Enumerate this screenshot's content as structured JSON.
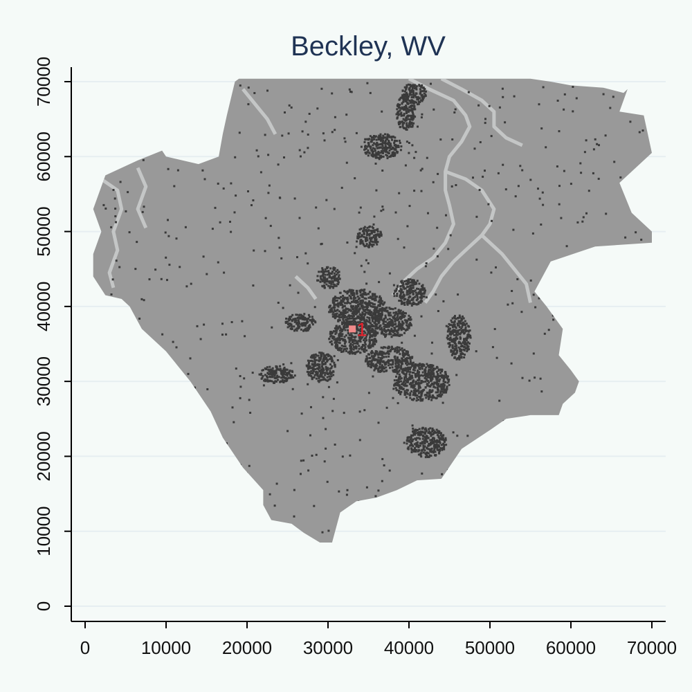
{
  "title": "Beckley, WV",
  "chart_data": {
    "type": "map",
    "title": "Beckley, WV",
    "xlabel": "",
    "ylabel": "",
    "xlim": [
      0,
      70000
    ],
    "ylim": [
      0,
      70000
    ],
    "x_ticks": [
      "0",
      "10000",
      "20000",
      "30000",
      "40000",
      "50000",
      "60000",
      "70000"
    ],
    "y_ticks": [
      "0",
      "10000",
      "20000",
      "30000",
      "40000",
      "50000",
      "60000",
      "70000"
    ],
    "grid": true,
    "colors": {
      "background": "#f5faf8",
      "region_fill": "#999999",
      "streams": "#c4c6c6",
      "developed": "#3a3a3a",
      "marker": "#f08a8a",
      "marker_label": "#e8202a",
      "title": "#1f3354"
    },
    "region_outline": [
      [
        2000,
        50000
      ],
      [
        1000,
        53000
      ],
      [
        2500,
        57500
      ],
      [
        6500,
        59500
      ],
      [
        9500,
        60800
      ],
      [
        10000,
        60000
      ],
      [
        14000,
        59000
      ],
      [
        16500,
        60000
      ],
      [
        17000,
        63000
      ],
      [
        17500,
        65500
      ],
      [
        18500,
        70000
      ],
      [
        19000,
        70400
      ],
      [
        44000,
        70400
      ],
      [
        55000,
        70400
      ],
      [
        57500,
        70000
      ],
      [
        60000,
        69500
      ],
      [
        64000,
        69200
      ],
      [
        66500,
        68500
      ],
      [
        67000,
        69000
      ],
      [
        66000,
        66000
      ],
      [
        69000,
        65500
      ],
      [
        70000,
        60500
      ],
      [
        66000,
        56500
      ],
      [
        67500,
        52500
      ],
      [
        70000,
        50000
      ],
      [
        70000,
        48500
      ],
      [
        63000,
        48000
      ],
      [
        57500,
        46000
      ],
      [
        55500,
        42000
      ],
      [
        57000,
        40000
      ],
      [
        59000,
        37000
      ],
      [
        58500,
        33500
      ],
      [
        60000,
        31500
      ],
      [
        61000,
        30000
      ],
      [
        60500,
        28500
      ],
      [
        59000,
        27000
      ],
      [
        58500,
        25500
      ],
      [
        55000,
        25500
      ],
      [
        52000,
        25000
      ],
      [
        50000,
        23500
      ],
      [
        46500,
        21000
      ],
      [
        44000,
        17000
      ],
      [
        41000,
        16800
      ],
      [
        38500,
        15500
      ],
      [
        36000,
        14500
      ],
      [
        33500,
        14000
      ],
      [
        31500,
        12500
      ],
      [
        30500,
        8500
      ],
      [
        29000,
        8500
      ],
      [
        27000,
        9800
      ],
      [
        25500,
        11000
      ],
      [
        23000,
        11500
      ],
      [
        22000,
        13500
      ],
      [
        22000,
        15500
      ],
      [
        19500,
        18500
      ],
      [
        17000,
        22500
      ],
      [
        15500,
        26000
      ],
      [
        13000,
        30000
      ],
      [
        10000,
        34000
      ],
      [
        7000,
        37000
      ],
      [
        5500,
        40000
      ],
      [
        4500,
        41000
      ],
      [
        2500,
        41500
      ],
      [
        1000,
        44000
      ],
      [
        1000,
        47000
      ]
    ],
    "developed_clusters": [
      {
        "x": 33500,
        "y": 40000,
        "rx": 3500,
        "ry": 2500
      },
      {
        "x": 37500,
        "y": 38000,
        "rx": 2800,
        "ry": 2000
      },
      {
        "x": 33000,
        "y": 36000,
        "rx": 3000,
        "ry": 2200
      },
      {
        "x": 37500,
        "y": 33000,
        "rx": 3000,
        "ry": 1800
      },
      {
        "x": 41500,
        "y": 30000,
        "rx": 3500,
        "ry": 2500
      },
      {
        "x": 36500,
        "y": 61500,
        "rx": 2500,
        "ry": 1700
      },
      {
        "x": 39500,
        "y": 66000,
        "rx": 1200,
        "ry": 2500
      },
      {
        "x": 40500,
        "y": 68500,
        "rx": 1500,
        "ry": 1500
      },
      {
        "x": 35000,
        "y": 49500,
        "rx": 1500,
        "ry": 1500
      },
      {
        "x": 30000,
        "y": 44000,
        "rx": 1500,
        "ry": 1500
      },
      {
        "x": 42000,
        "y": 22000,
        "rx": 2500,
        "ry": 2000
      },
      {
        "x": 29000,
        "y": 32000,
        "rx": 1800,
        "ry": 2000
      },
      {
        "x": 23500,
        "y": 31000,
        "rx": 2200,
        "ry": 1200
      },
      {
        "x": 26500,
        "y": 38000,
        "rx": 2000,
        "ry": 1200
      },
      {
        "x": 46000,
        "y": 36000,
        "rx": 1500,
        "ry": 3000
      },
      {
        "x": 40000,
        "y": 42000,
        "rx": 2000,
        "ry": 1800
      }
    ],
    "streams": [
      [
        [
          40000,
          70400
        ],
        [
          42500,
          69000
        ],
        [
          45500,
          67500
        ],
        [
          47000,
          65500
        ],
        [
          47500,
          64000
        ],
        [
          46500,
          62000
        ],
        [
          45000,
          60000
        ],
        [
          44500,
          58000
        ],
        [
          44500,
          55500
        ],
        [
          45000,
          53500
        ],
        [
          45500,
          51000
        ],
        [
          44500,
          48500
        ],
        [
          43000,
          46500
        ],
        [
          41000,
          45000
        ],
        [
          39500,
          43500
        ],
        [
          38000,
          41500
        ]
      ],
      [
        [
          44000,
          70400
        ],
        [
          46500,
          69000
        ],
        [
          49000,
          67500
        ],
        [
          50500,
          66000
        ],
        [
          50500,
          64000
        ],
        [
          52000,
          62500
        ],
        [
          54000,
          61500
        ]
      ],
      [
        [
          44500,
          58000
        ],
        [
          47000,
          57000
        ],
        [
          49000,
          55500
        ],
        [
          50500,
          53000
        ],
        [
          50000,
          51000
        ],
        [
          49000,
          49500
        ],
        [
          47000,
          47500
        ],
        [
          45500,
          46000
        ]
      ],
      [
        [
          49000,
          49500
        ],
        [
          51500,
          47000
        ],
        [
          53000,
          45000
        ],
        [
          54500,
          43000
        ],
        [
          55000,
          40500
        ]
      ],
      [
        [
          45500,
          46000
        ],
        [
          44000,
          44000
        ],
        [
          43000,
          42000
        ],
        [
          42000,
          40500
        ]
      ],
      [
        [
          2000,
          57000
        ],
        [
          4000,
          55500
        ],
        [
          4500,
          53000
        ],
        [
          3500,
          50000
        ],
        [
          4000,
          47500
        ],
        [
          3000,
          44500
        ],
        [
          3500,
          42500
        ]
      ],
      [
        [
          6500,
          58500
        ],
        [
          7500,
          56000
        ],
        [
          6500,
          53000
        ],
        [
          7500,
          50500
        ]
      ],
      [
        [
          19500,
          69000
        ],
        [
          21000,
          67000
        ],
        [
          22500,
          65000
        ],
        [
          23500,
          63000
        ]
      ],
      [
        [
          26000,
          44000
        ],
        [
          27500,
          42500
        ],
        [
          28500,
          41000
        ]
      ]
    ],
    "points": [
      {
        "label": "1",
        "x": 33000,
        "y": 37000
      }
    ]
  }
}
